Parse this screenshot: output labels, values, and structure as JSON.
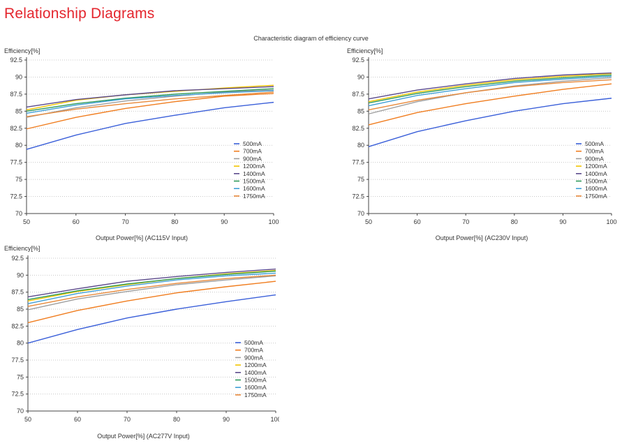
{
  "page": {
    "title": "Relationship Diagrams",
    "subtitle": "Characteristic diagram of efficiency curve"
  },
  "colors": {
    "500mA": "#3a5fd9",
    "700mA": "#f07d1f",
    "900mA": "#9e9e9e",
    "1200mA": "#f2c400",
    "1400mA": "#5b4a8b",
    "1500mA": "#2e9a5a",
    "1600mA": "#3f9fd6",
    "1750mA": "#e8893a"
  },
  "chart_data": [
    {
      "type": "line",
      "ylabel": "Efficiency[%]",
      "xlabel": "Output Power[%] (AC115V Input)",
      "x": [
        50,
        60,
        70,
        80,
        90,
        100
      ],
      "xlim": [
        50,
        100
      ],
      "ylim": [
        70,
        92.5
      ],
      "xticks": [
        50,
        60,
        70,
        80,
        90,
        100
      ],
      "yticks": [
        70,
        72.5,
        75,
        77.5,
        80,
        82.5,
        85,
        87.5,
        90,
        92.5
      ],
      "grid": true,
      "legend": "right",
      "series": [
        {
          "name": "500mA",
          "values": [
            79.4,
            81.5,
            83.2,
            84.4,
            85.5,
            86.3
          ]
        },
        {
          "name": "700mA",
          "values": [
            82.4,
            84.1,
            85.4,
            86.4,
            87.2,
            87.6
          ]
        },
        {
          "name": "900mA",
          "values": [
            84.1,
            85.5,
            86.5,
            87.2,
            87.8,
            88.1
          ]
        },
        {
          "name": "1200mA",
          "values": [
            85.2,
            86.6,
            87.4,
            87.9,
            88.4,
            88.8
          ]
        },
        {
          "name": "1400mA",
          "values": [
            85.6,
            86.7,
            87.4,
            88.0,
            88.3,
            88.6
          ]
        },
        {
          "name": "1500mA",
          "values": [
            85.0,
            86.1,
            86.9,
            87.5,
            87.9,
            88.3
          ]
        },
        {
          "name": "1600mA",
          "values": [
            84.7,
            85.9,
            86.8,
            87.3,
            87.7,
            88.0
          ]
        },
        {
          "name": "1750mA",
          "values": [
            84.2,
            85.3,
            86.1,
            86.8,
            87.3,
            87.8
          ]
        }
      ]
    },
    {
      "type": "line",
      "ylabel": "Efficiency[%]",
      "xlabel": "Output Power[%] (AC230V Input)",
      "x": [
        50,
        60,
        70,
        80,
        90,
        100
      ],
      "xlim": [
        50,
        100
      ],
      "ylim": [
        70,
        92.5
      ],
      "xticks": [
        50,
        60,
        70,
        80,
        90,
        100
      ],
      "yticks": [
        70,
        72.5,
        75,
        77.5,
        80,
        82.5,
        85,
        87.5,
        90,
        92.5
      ],
      "grid": true,
      "legend": "right",
      "series": [
        {
          "name": "500mA",
          "values": [
            79.8,
            82.0,
            83.6,
            85.0,
            86.1,
            86.9
          ]
        },
        {
          "name": "700mA",
          "values": [
            83.0,
            84.8,
            86.1,
            87.2,
            88.2,
            89.0
          ]
        },
        {
          "name": "900mA",
          "values": [
            84.6,
            86.4,
            87.7,
            88.7,
            89.4,
            89.9
          ]
        },
        {
          "name": "1200mA",
          "values": [
            86.4,
            87.8,
            88.8,
            89.6,
            90.1,
            90.5
          ]
        },
        {
          "name": "1400mA",
          "values": [
            86.8,
            88.1,
            89.0,
            89.8,
            90.3,
            90.6
          ]
        },
        {
          "name": "1500mA",
          "values": [
            86.2,
            87.6,
            88.6,
            89.4,
            89.9,
            90.3
          ]
        },
        {
          "name": "1600mA",
          "values": [
            85.8,
            87.3,
            88.3,
            89.2,
            89.7,
            90.1
          ]
        },
        {
          "name": "1750mA",
          "values": [
            85.2,
            86.6,
            87.7,
            88.6,
            89.2,
            89.6
          ]
        }
      ]
    },
    {
      "type": "line",
      "ylabel": "Efficiency[%]",
      "xlabel": "Output Power[%] (AC277V Input)",
      "x": [
        50,
        60,
        70,
        80,
        90,
        100
      ],
      "xlim": [
        50,
        100
      ],
      "ylim": [
        70,
        92.5
      ],
      "xticks": [
        50,
        60,
        70,
        80,
        90,
        100
      ],
      "yticks": [
        70,
        72.5,
        75,
        77.5,
        80,
        82.5,
        85,
        87.5,
        90,
        92.5
      ],
      "grid": true,
      "legend": "right",
      "series": [
        {
          "name": "500mA",
          "values": [
            80.0,
            82.0,
            83.7,
            85.0,
            86.1,
            87.1
          ]
        },
        {
          "name": "700mA",
          "values": [
            83.0,
            84.8,
            86.2,
            87.4,
            88.3,
            89.1
          ]
        },
        {
          "name": "900mA",
          "values": [
            84.9,
            86.5,
            87.6,
            88.6,
            89.3,
            89.9
          ]
        },
        {
          "name": "1200mA",
          "values": [
            86.2,
            87.6,
            88.6,
            89.5,
            90.2,
            90.7
          ]
        },
        {
          "name": "1400mA",
          "values": [
            86.8,
            88.0,
            89.1,
            89.8,
            90.4,
            90.9
          ]
        },
        {
          "name": "1500mA",
          "values": [
            86.4,
            87.7,
            88.7,
            89.5,
            90.1,
            90.6
          ]
        },
        {
          "name": "1600mA",
          "values": [
            85.8,
            87.3,
            88.4,
            89.3,
            89.9,
            90.3
          ]
        },
        {
          "name": "1750mA",
          "values": [
            85.4,
            86.8,
            87.9,
            88.8,
            89.5,
            90.0
          ]
        }
      ]
    }
  ]
}
